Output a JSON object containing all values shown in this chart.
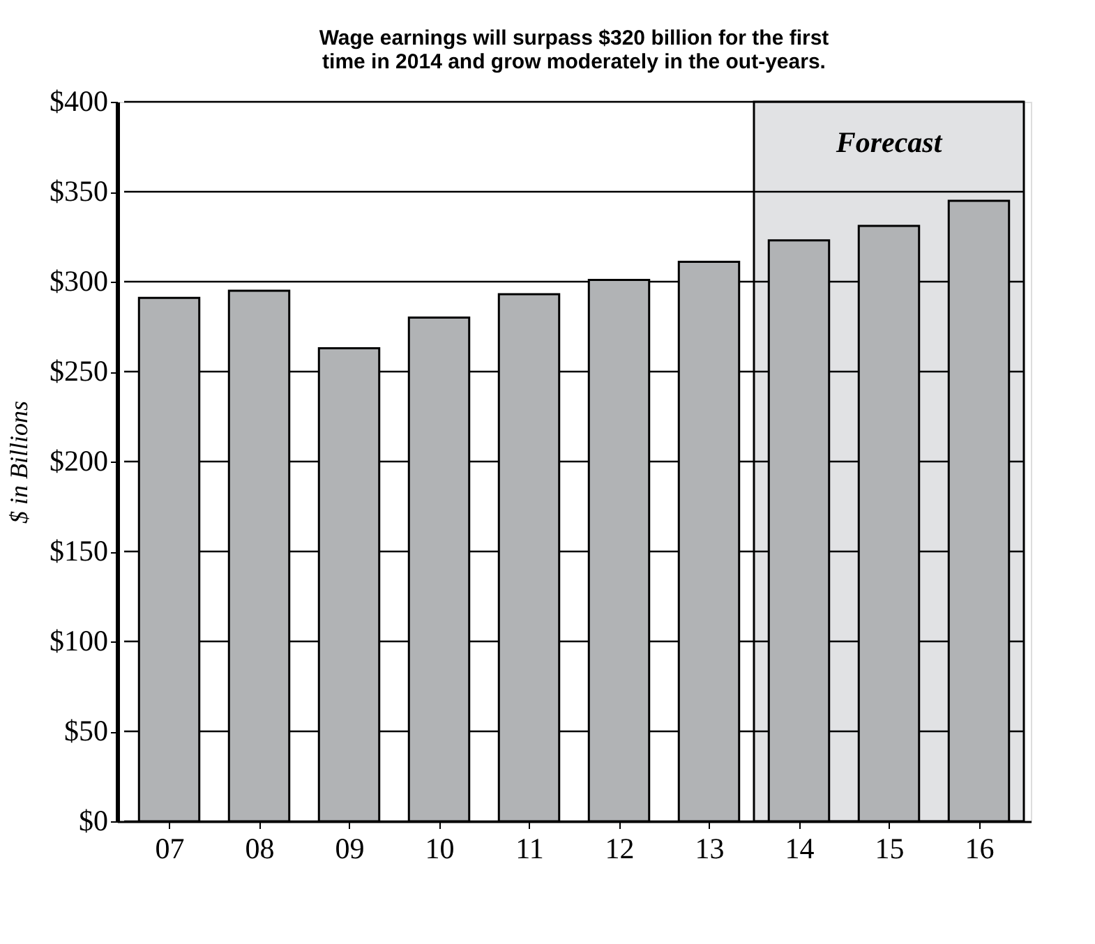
{
  "chart_data": {
    "type": "bar",
    "title": [
      "Wage earnings will surpass $320 billion for the first",
      "time in 2014  and grow moderately in the out-years."
    ],
    "ylabel": "$ in Billions",
    "categories": [
      "07",
      "08",
      "09",
      "10",
      "11",
      "12",
      "13",
      "14",
      "15",
      "16"
    ],
    "values": [
      291,
      295,
      263,
      280,
      293,
      301,
      311,
      323,
      331,
      345
    ],
    "color": "#b1b3b5",
    "ylim": [
      0,
      400
    ],
    "yticks": [
      {
        "value": 0,
        "label": "$0"
      },
      {
        "value": 50,
        "label": "$50"
      },
      {
        "value": 100,
        "label": "$100"
      },
      {
        "value": 150,
        "label": "$150"
      },
      {
        "value": 200,
        "label": "$200"
      },
      {
        "value": 250,
        "label": "$250"
      },
      {
        "value": 300,
        "label": "$300"
      },
      {
        "value": 350,
        "label": "$350"
      },
      {
        "value": 400,
        "label": "$400"
      }
    ],
    "bands": [
      {
        "axis": "x",
        "from": "14",
        "to": "16",
        "label": "Forecast",
        "color": "#e1e2e4"
      }
    ],
    "grid": "y"
  }
}
